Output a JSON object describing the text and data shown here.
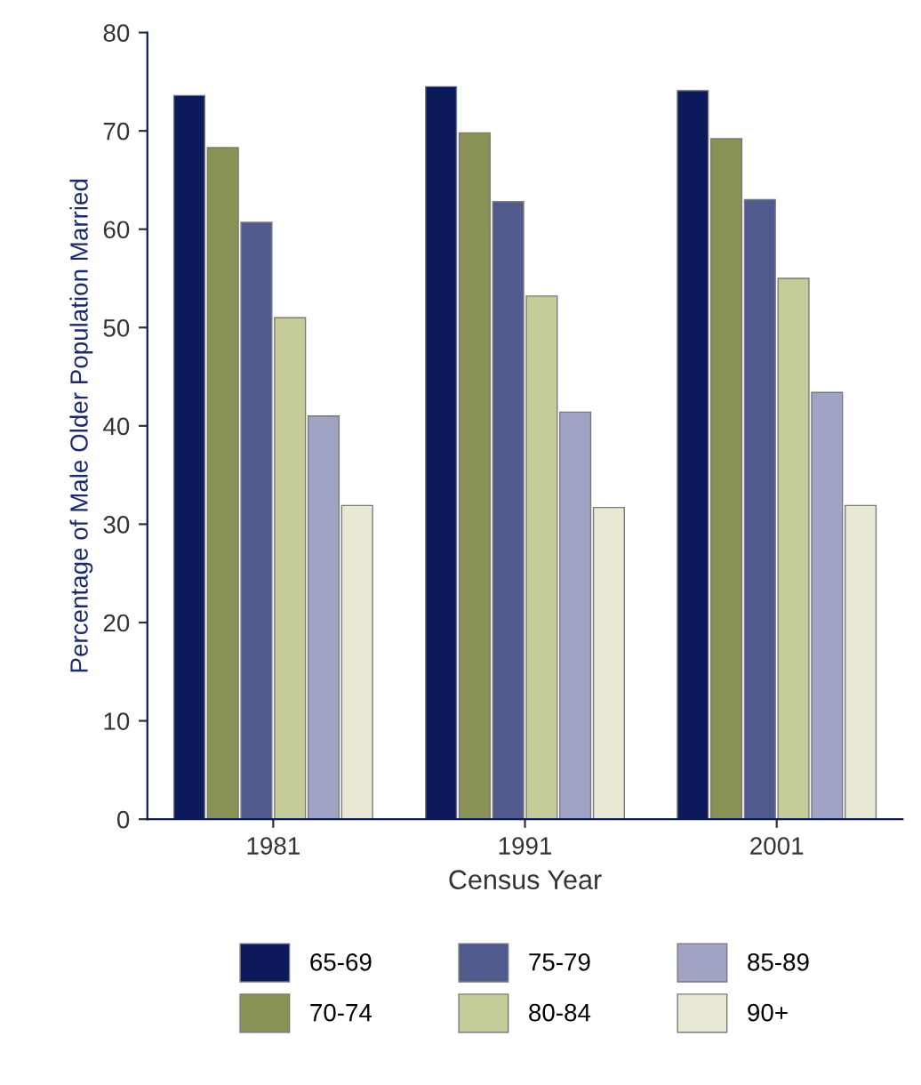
{
  "chart_data": {
    "type": "bar",
    "xlabel": "Census Year",
    "ylabel": "Percentage of Male Older Population Married",
    "categories": [
      "1981",
      "1991",
      "2001"
    ],
    "series": [
      {
        "name": "65-69",
        "color": "#0c1a5c",
        "values": [
          73.6,
          74.5,
          74.1
        ]
      },
      {
        "name": "70-74",
        "color": "#8a9155",
        "values": [
          68.3,
          69.8,
          69.2
        ]
      },
      {
        "name": "75-79",
        "color": "#505a8c",
        "values": [
          60.7,
          62.8,
          63.0
        ]
      },
      {
        "name": "80-84",
        "color": "#c5cc9a",
        "values": [
          51.0,
          53.2,
          55.0
        ]
      },
      {
        "name": "85-89",
        "color": "#a0a3c3",
        "values": [
          41.0,
          41.4,
          43.4
        ]
      },
      {
        "name": "90+",
        "color": "#e8e8d4",
        "values": [
          31.9,
          31.7,
          31.9
        ]
      }
    ],
    "ylim": [
      0,
      80
    ],
    "yticks": [
      0,
      10,
      20,
      30,
      40,
      50,
      60,
      70,
      80
    ],
    "grid": false,
    "legend": "bottom"
  }
}
